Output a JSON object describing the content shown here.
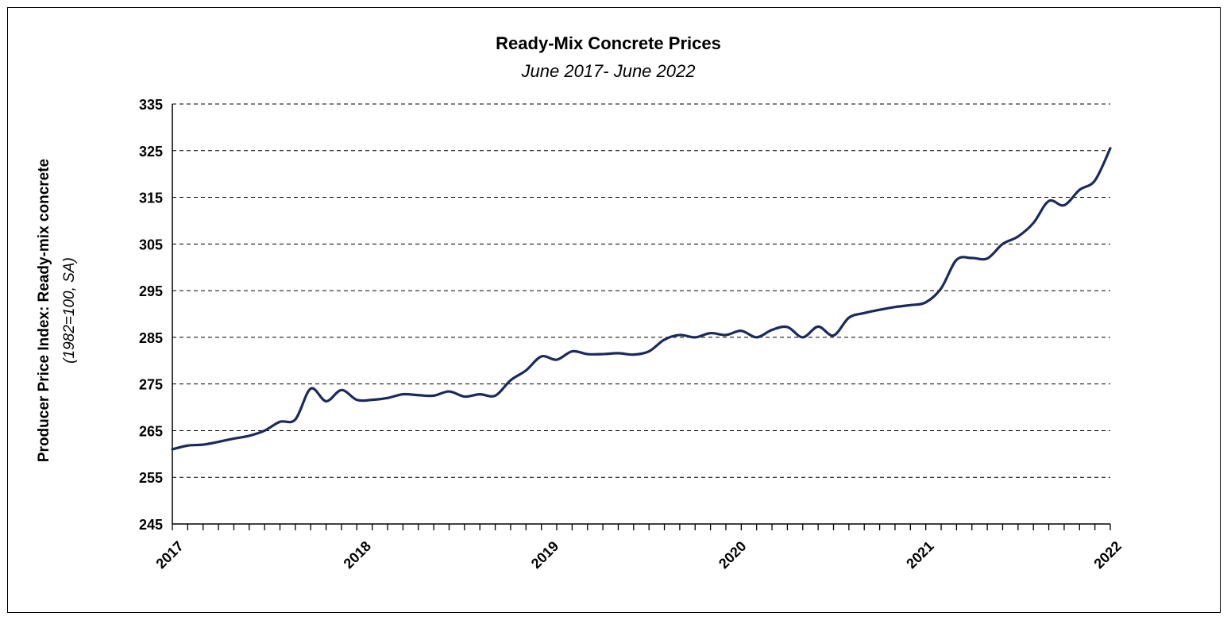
{
  "chart_data": {
    "type": "line",
    "title": "Ready-Mix Concrete Prices",
    "subtitle": "June 2017- June 2022",
    "ylabel": "Producer Price Index: Ready-mix concrete",
    "ylabel_sub": "(1982=100, SA)",
    "xlabel": "",
    "ylim": [
      245,
      335
    ],
    "yticks": [
      "245",
      "255",
      "265",
      "275",
      "285",
      "295",
      "305",
      "315",
      "325",
      "335"
    ],
    "xticks": [
      "2017",
      "2018",
      "2019",
      "2020",
      "2021",
      "2022"
    ],
    "grid": "horizontal-dashed",
    "legend": "none",
    "line_color": "#1b2a5c",
    "series": [
      {
        "values": [
          261,
          261.8,
          262,
          262.6,
          263.3,
          263.9,
          265,
          266.9,
          267.4,
          274,
          271.3,
          273.7,
          271.6,
          271.6,
          272,
          272.8,
          272.6,
          272.5,
          273.4,
          272.3,
          272.8,
          272.5,
          275.8,
          277.9,
          280.9,
          280.2,
          282,
          281.4,
          281.4,
          281.6,
          281.3,
          282,
          284.5,
          285.5,
          285,
          285.9,
          285.5,
          286.4,
          285,
          286.6,
          287.2,
          285,
          287.3,
          285.4,
          289.2,
          290.2,
          290.9,
          291.5,
          291.9,
          292.5,
          295.5,
          301.6,
          302,
          301.9,
          305,
          306.6,
          309.5,
          314.2,
          313.3,
          316.6,
          318.6,
          325.5
        ]
      }
    ]
  }
}
